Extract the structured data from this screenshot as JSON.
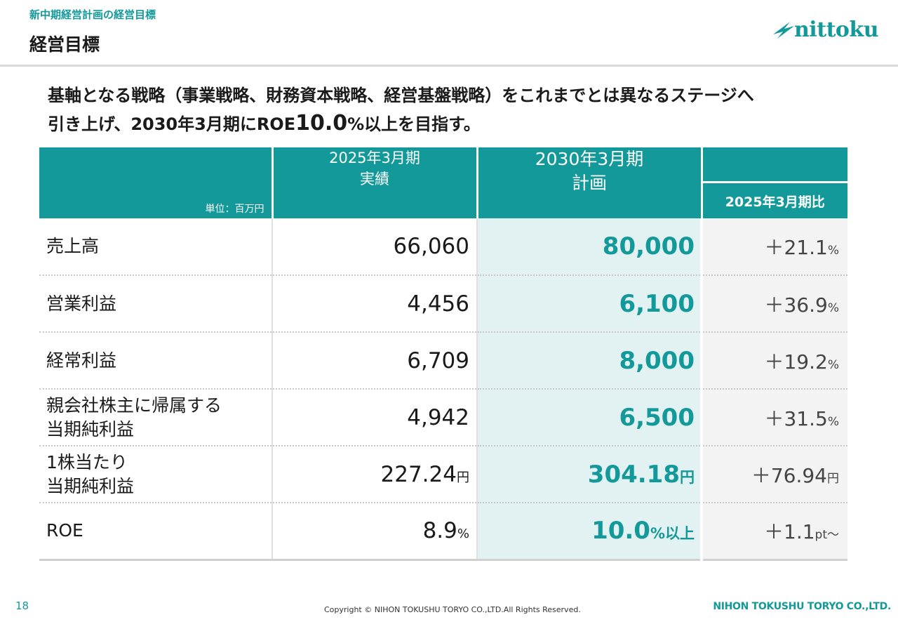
{
  "header": {
    "breadcrumb": "新中期経営計画の経営目標",
    "title": "経営目標"
  },
  "logo": {
    "text": "nittoku"
  },
  "headline": {
    "line1": "基軸となる戦略（事業戦略、財務資本戦略、経営基盤戦略）をこれまでとは異なるステージへ",
    "line2_prefix": "引き上げ、2030年3月期にROE",
    "line2_value": "10.0",
    "line2_suffix": "%以上を目指す。"
  },
  "table": {
    "unit": "単位：百万円",
    "col_actual_line1": "2025年3月期",
    "col_actual_line2": "実績",
    "col_plan_line1": "2030年3月期",
    "col_plan_line2": "計画",
    "col_comp": "2025年3月期比",
    "rows": [
      {
        "label1": "売上高",
        "label2": "",
        "actual": "66,060",
        "actual_unit": "",
        "plan": "80,000",
        "plan_unit": "",
        "comp": "＋21.1",
        "comp_unit": "%"
      },
      {
        "label1": "営業利益",
        "label2": "",
        "actual": "4,456",
        "actual_unit": "",
        "plan": "6,100",
        "plan_unit": "",
        "comp": "＋36.9",
        "comp_unit": "%"
      },
      {
        "label1": "経常利益",
        "label2": "",
        "actual": "6,709",
        "actual_unit": "",
        "plan": "8,000",
        "plan_unit": "",
        "comp": "＋19.2",
        "comp_unit": "%"
      },
      {
        "label1": "親会社株主に帰属する",
        "label2": "当期純利益",
        "actual": "4,942",
        "actual_unit": "",
        "plan": "6,500",
        "plan_unit": "",
        "comp": "＋31.5",
        "comp_unit": "%"
      },
      {
        "label1": "1株当たり",
        "label2": "当期純利益",
        "actual": "227.24",
        "actual_unit": "円",
        "plan": "304.18",
        "plan_unit": "円",
        "comp": "＋76.94",
        "comp_unit": "円"
      },
      {
        "label1": "ROE",
        "label2": "",
        "actual": "8.9",
        "actual_unit": "%",
        "plan": "10.0",
        "plan_unit": "%以上",
        "comp": "＋1.1",
        "comp_unit": "pt～"
      }
    ]
  },
  "footer": {
    "page": "18",
    "copyright": "Copyright © NIHON TOKUSHU TORYO CO.,LTD.All Rights Reserved.",
    "company": "NIHON TOKUSHU TORYO CO.,LTD."
  },
  "colors": {
    "accent": "#14999a",
    "plan_bg": "#e2f2f3",
    "comp_bg": "#f3f3f3"
  }
}
